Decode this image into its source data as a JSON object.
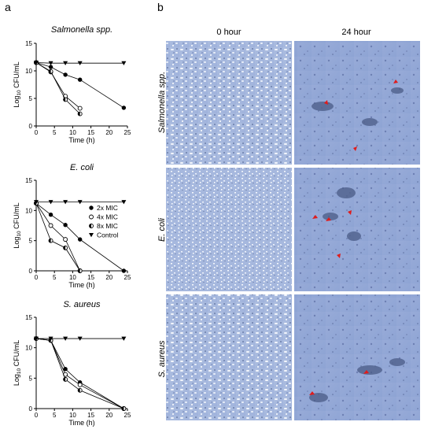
{
  "panel_labels": {
    "a": "a",
    "b": "b"
  },
  "chart_data": [
    {
      "type": "line",
      "title": "Salmonella spp.",
      "xlabel": "Time (h)",
      "ylabel_base": "Log",
      "ylabel_sub": "10",
      "ylabel_rest": " CFU/mL",
      "xlim": [
        0,
        25
      ],
      "ylim": [
        0,
        15
      ],
      "xticks": [
        0,
        5,
        10,
        15,
        20,
        25
      ],
      "yticks": [
        0,
        5,
        10,
        15
      ],
      "x": [
        0,
        4,
        8,
        12,
        24
      ],
      "series": [
        {
          "marker": "filled-circle",
          "values": [
            11.5,
            10.7,
            9.3,
            8.4,
            3.3
          ]
        },
        {
          "marker": "open-circle",
          "values": [
            11.5,
            9.8,
            5.4,
            3.2,
            null
          ]
        },
        {
          "marker": "half-circle",
          "values": [
            11.5,
            9.9,
            4.8,
            2.2,
            null
          ]
        },
        {
          "marker": "triangle",
          "values": [
            11.5,
            11.4,
            11.4,
            11.4,
            11.4
          ]
        }
      ]
    },
    {
      "type": "line",
      "title": "E. coli",
      "xlabel": "Time (h)",
      "ylabel_base": "Log",
      "ylabel_sub": "10",
      "ylabel_rest": " CFU/mL",
      "xlim": [
        0,
        25
      ],
      "ylim": [
        0,
        15
      ],
      "xticks": [
        0,
        5,
        10,
        15,
        20,
        25
      ],
      "yticks": [
        0,
        5,
        10,
        15
      ],
      "x": [
        0,
        4,
        8,
        12,
        24
      ],
      "legend": [
        "2x MIC",
        "4x MIC",
        "8x MIC",
        "Control"
      ],
      "series": [
        {
          "marker": "filled-circle",
          "name": "2x MIC",
          "values": [
            11.2,
            9.3,
            7.6,
            5.2,
            0
          ]
        },
        {
          "marker": "open-circle",
          "name": "4x MIC",
          "values": [
            11.2,
            7.5,
            5.2,
            0,
            null
          ]
        },
        {
          "marker": "half-circle",
          "name": "8x MIC",
          "values": [
            11.2,
            5.0,
            3.8,
            0,
            null
          ]
        },
        {
          "marker": "triangle",
          "name": "Control",
          "values": [
            11.4,
            11.4,
            11.4,
            11.4,
            11.4
          ]
        }
      ]
    },
    {
      "type": "line",
      "title": "S. aureus",
      "xlabel": "Time (h)",
      "ylabel_base": "Log",
      "ylabel_sub": "10",
      "ylabel_rest": " CFU/mL",
      "xlim": [
        0,
        25
      ],
      "ylim": [
        0,
        15
      ],
      "xticks": [
        0,
        5,
        10,
        15,
        20,
        25
      ],
      "yticks": [
        0,
        5,
        10,
        15
      ],
      "x": [
        0,
        4,
        8,
        12,
        24
      ],
      "series": [
        {
          "marker": "filled-circle",
          "values": [
            11.5,
            11.2,
            6.5,
            4.3,
            0
          ]
        },
        {
          "marker": "open-circle",
          "values": [
            11.5,
            11.2,
            5.6,
            3.9,
            0
          ]
        },
        {
          "marker": "half-circle",
          "values": [
            11.5,
            11.2,
            4.8,
            3.0,
            0
          ]
        },
        {
          "marker": "triangle",
          "values": [
            11.5,
            11.5,
            11.5,
            11.5,
            11.5
          ]
        }
      ]
    }
  ],
  "micrographs": {
    "columns": [
      "0 hour",
      "24 hour"
    ],
    "rows": [
      "Salmonella spp.",
      "E. coli",
      "S. aureus"
    ]
  }
}
